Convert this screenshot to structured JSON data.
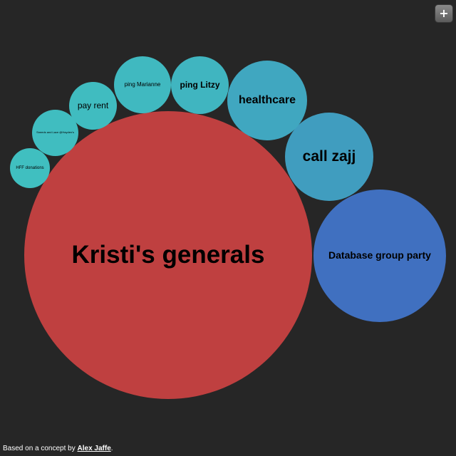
{
  "toolbar": {
    "add_label": "+"
  },
  "bubbles": [
    {
      "label": "Kristi's generals",
      "color": "#bf4040"
    },
    {
      "label": "Database group party",
      "color": "#4070c0"
    },
    {
      "label": "call zajj",
      "color": "#409dbf"
    },
    {
      "label": "healthcare",
      "color": "#40a7c0"
    },
    {
      "label": "ping Litzy",
      "color": "#40b5c0"
    },
    {
      "label": "ping Marianne",
      "color": "#40b9c0"
    },
    {
      "label": "pay rent",
      "color": "#40bcc0"
    },
    {
      "label": "Sneeds and Lace @Hayden's",
      "color": "#40bdc0"
    },
    {
      "label": "HFF donations",
      "color": "#40bfc0"
    }
  ],
  "footer": {
    "prefix": "Based on a concept by ",
    "link_text": "Alex Jaffe",
    "suffix": "."
  }
}
